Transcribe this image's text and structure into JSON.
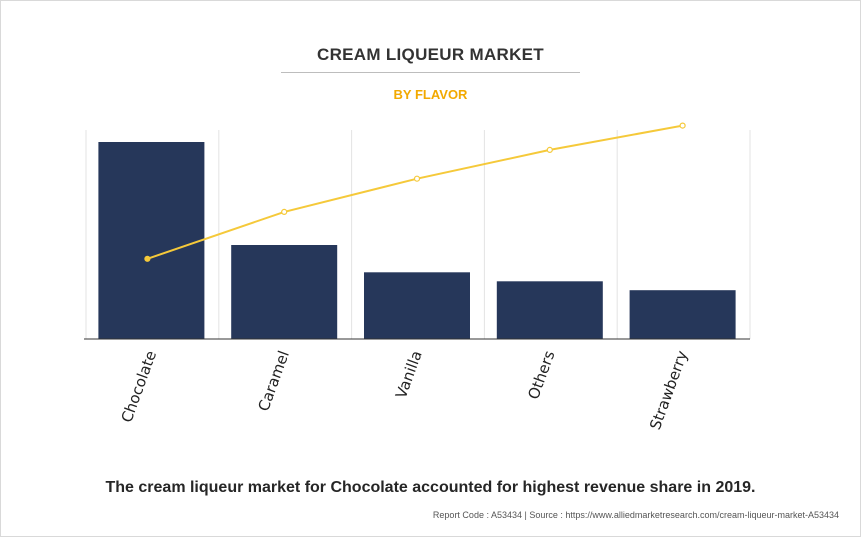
{
  "header": {
    "title": "CREAM LIQUEUR MARKET",
    "subtitle": "BY FLAVOR"
  },
  "caption": "The cream liqueur market for Chocolate accounted for highest revenue share in 2019.",
  "footer": {
    "report_code": "Report Code : A53434",
    "separator": "|",
    "source": "Source : https://www.alliedmarketresearch.com/cream-liqueur-market-A53434"
  },
  "colors": {
    "bar": "#26375a",
    "line": "#f5c93a",
    "grid": "#e3e3e3",
    "axis": "#333333"
  },
  "chart_data": {
    "type": "bar",
    "categories": [
      "Chocolate",
      "Caramel",
      "Vanilla",
      "Others",
      "Strawberry"
    ],
    "series": [
      {
        "type": "bar",
        "values": [
          39.6,
          18.9,
          13.4,
          11.6,
          9.8
        ]
      },
      {
        "type": "line",
        "values": [
          39.6,
          58.5,
          71.9,
          83.5,
          93.3
        ]
      }
    ],
    "bar_ylim": [
      0,
      40
    ],
    "line_ylim": [
      0,
      100
    ],
    "grid": "vertical",
    "legend": "none"
  }
}
